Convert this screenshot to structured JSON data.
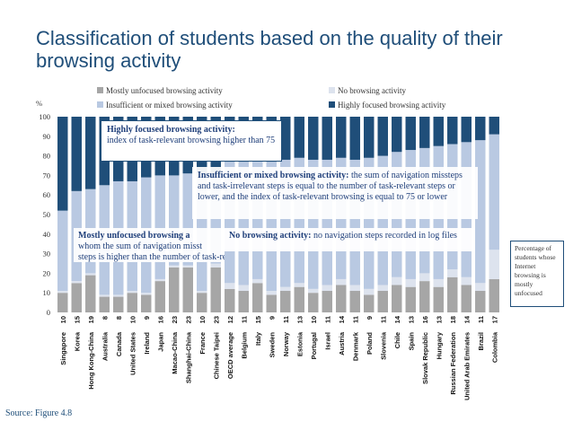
{
  "slide": {
    "title": "Classification of students based on the quality of their browsing activity",
    "source": "Source: Figure 4.8",
    "side_note": "Percentage of students whose Internet browsing is mostly unfocused"
  },
  "colors": {
    "mostly_unfocused": "#a6a6a6",
    "no_browsing": "#dde3ee",
    "insufficient": "#b9c9e2",
    "highly_focused": "#1f4e79",
    "title": "#1f4e79"
  },
  "callouts": {
    "highly_focused": {
      "title": "Highly focused browsing activity:",
      "body": "index of task-relevant browsing higher than 75"
    },
    "insufficient": {
      "title": "Insufficient or mixed browsing activity:",
      "body": "the sum of navigation missteps and task-irrelevant steps is equal to the number of task-relevant steps or lower, and the index of task-relevant browsing is equal to 75 or lower"
    },
    "no_browsing": {
      "title": "No browsing activity:",
      "body": "no navigation steps recorded in log files"
    },
    "mostly_unfocused": {
      "title": "Mostly unfocused browsing a",
      "body_line1": "whom the sum of navigation misst",
      "body_line2": "steps is higher than the number of task-relevant steps"
    }
  },
  "chart_data": {
    "type": "bar",
    "stacked": true,
    "title": "",
    "ylabel": "%",
    "xlabel": "",
    "ylim": [
      0,
      100
    ],
    "yticks": [
      0,
      10,
      20,
      30,
      40,
      50,
      60,
      70,
      80,
      90,
      100
    ],
    "legend": [
      {
        "name": "Mostly unfocused browsing activity",
        "key": "mostly_unfocused"
      },
      {
        "name": "No browsing activity",
        "key": "no_browsing"
      },
      {
        "name": "Insufficient or mixed browsing activity",
        "key": "insufficient"
      },
      {
        "name": "Highly focused browsing activity",
        "key": "highly_focused"
      }
    ],
    "legend_position": "top",
    "categories": [
      "Singapore",
      "Korea",
      "Hong Kong-China",
      "Australia",
      "Canada",
      "United States",
      "Ireland",
      "Japan",
      "Macao-China",
      "Shanghai-China",
      "France",
      "Chinese Taipei",
      "OECD average",
      "Belgium",
      "Italy",
      "Sweden",
      "Norway",
      "Estonia",
      "Portugal",
      "Israel",
      "Austria",
      "Denmark",
      "Poland",
      "Slovenia",
      "Chile",
      "Spain",
      "Slovak Republic",
      "Hungary",
      "Russian Federation",
      "United Arab Emirates",
      "Brazil",
      "Colombia"
    ],
    "labels": [
      "10",
      "15",
      "19",
      "8",
      "8",
      "10",
      "9",
      "16",
      "23",
      "23",
      "10",
      "23",
      "12",
      "11",
      "15",
      "9",
      "11",
      "13",
      "10",
      "11",
      "14",
      "11",
      "9",
      "11",
      "14",
      "13",
      "16",
      "13",
      "18",
      "14",
      "11",
      "17"
    ],
    "series": [
      {
        "name": "Mostly unfocused browsing activity",
        "key": "mostly_unfocused",
        "values": [
          10,
          15,
          19,
          8,
          8,
          10,
          9,
          16,
          23,
          23,
          10,
          23,
          12,
          11,
          15,
          9,
          11,
          13,
          10,
          11,
          14,
          11,
          9,
          11,
          14,
          13,
          16,
          13,
          18,
          14,
          11,
          17
        ]
      },
      {
        "name": "No browsing activity",
        "key": "no_browsing",
        "values": [
          1,
          1,
          1,
          1,
          1,
          1,
          1,
          1,
          1,
          1,
          1,
          2,
          3,
          3,
          2,
          2,
          2,
          2,
          2,
          3,
          3,
          3,
          3,
          3,
          4,
          4,
          4,
          4,
          4,
          4,
          4,
          15
        ]
      },
      {
        "name": "Insufficient or mixed browsing activity",
        "key": "insufficient",
        "values": [
          41,
          46,
          43,
          56,
          58,
          56,
          59,
          53,
          46,
          47,
          60,
          45,
          62,
          63,
          61,
          66,
          65,
          64,
          66,
          64,
          62,
          64,
          67,
          66,
          64,
          66,
          64,
          68,
          64,
          69,
          73,
          59
        ]
      },
      {
        "name": "Highly focused browsing activity",
        "key": "highly_focused",
        "values": [
          48,
          38,
          37,
          35,
          33,
          33,
          31,
          30,
          30,
          29,
          29,
          30,
          23,
          23,
          22,
          23,
          22,
          21,
          22,
          22,
          21,
          22,
          21,
          20,
          18,
          17,
          16,
          15,
          14,
          13,
          12,
          9
        ]
      }
    ],
    "highlight_category": "OECD average"
  }
}
